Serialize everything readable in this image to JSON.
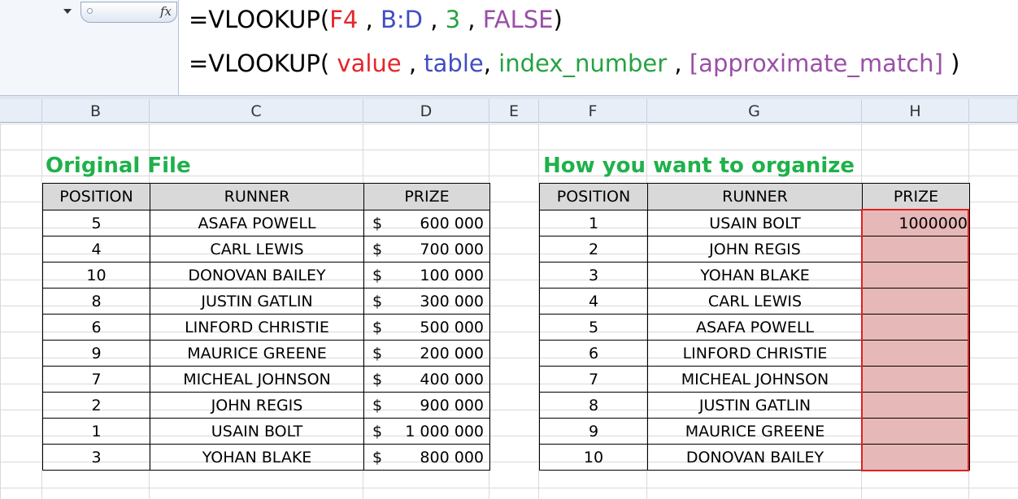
{
  "formula_bar": {
    "fx_label": "fx",
    "line1": {
      "prefix": "=VLOOKUP(",
      "arg1": "F4",
      "sep1": " , ",
      "arg2": "B:D",
      "sep2": " , ",
      "arg3": "3",
      "sep3": " , ",
      "arg4": "FALSE",
      "suffix": ")"
    },
    "line2": {
      "prefix": "=VLOOKUP( ",
      "arg1": "value",
      "sep1": " , ",
      "arg2": "table",
      "sep2": ", ",
      "arg3": "index_number",
      "sep3": " , ",
      "arg4": "[approximate_match]",
      "suffix": " )"
    }
  },
  "columns": [
    "B",
    "C",
    "D",
    "E",
    "F",
    "G",
    "H"
  ],
  "left_table": {
    "title": "Original File",
    "headers": [
      "POSITION",
      "RUNNER",
      "PRIZE"
    ],
    "rows": [
      {
        "position": "5",
        "runner": "ASAFA POWELL",
        "currency": "$",
        "prize": "600 000"
      },
      {
        "position": "4",
        "runner": "CARL LEWIS",
        "currency": "$",
        "prize": "700 000"
      },
      {
        "position": "10",
        "runner": "DONOVAN BAILEY",
        "currency": "$",
        "prize": "100 000"
      },
      {
        "position": "8",
        "runner": "JUSTIN GATLIN",
        "currency": "$",
        "prize": "300 000"
      },
      {
        "position": "6",
        "runner": "LINFORD CHRISTIE",
        "currency": "$",
        "prize": "500 000"
      },
      {
        "position": "9",
        "runner": "MAURICE GREENE",
        "currency": "$",
        "prize": "200 000"
      },
      {
        "position": "7",
        "runner": "MICHEAL JOHNSON",
        "currency": "$",
        "prize": "400 000"
      },
      {
        "position": "2",
        "runner": "JOHN REGIS",
        "currency": "$",
        "prize": "900 000"
      },
      {
        "position": "1",
        "runner": "USAIN BOLT",
        "currency": "$",
        "prize": "1 000 000"
      },
      {
        "position": "3",
        "runner": "YOHAN BLAKE",
        "currency": "$",
        "prize": "800 000"
      }
    ]
  },
  "right_table": {
    "title": "How you want to organize",
    "headers": [
      "POSITION",
      "RUNNER",
      "PRIZE"
    ],
    "rows": [
      {
        "position": "1",
        "runner": "USAIN BOLT",
        "prize": "1000000"
      },
      {
        "position": "2",
        "runner": "JOHN REGIS",
        "prize": ""
      },
      {
        "position": "3",
        "runner": "YOHAN BLAKE",
        "prize": ""
      },
      {
        "position": "4",
        "runner": "CARL LEWIS",
        "prize": ""
      },
      {
        "position": "5",
        "runner": "ASAFA POWELL",
        "prize": ""
      },
      {
        "position": "6",
        "runner": "LINFORD CHRISTIE",
        "prize": ""
      },
      {
        "position": "7",
        "runner": "MICHEAL JOHNSON",
        "prize": ""
      },
      {
        "position": "8",
        "runner": "JUSTIN GATLIN",
        "prize": ""
      },
      {
        "position": "9",
        "runner": "MAURICE GREENE",
        "prize": ""
      },
      {
        "position": "10",
        "runner": "DONOVAN BAILEY",
        "prize": ""
      }
    ]
  },
  "colors": {
    "title_green": "#1fb14a",
    "highlight_fill": "#e6b8b7",
    "highlight_border": "#e02020"
  }
}
